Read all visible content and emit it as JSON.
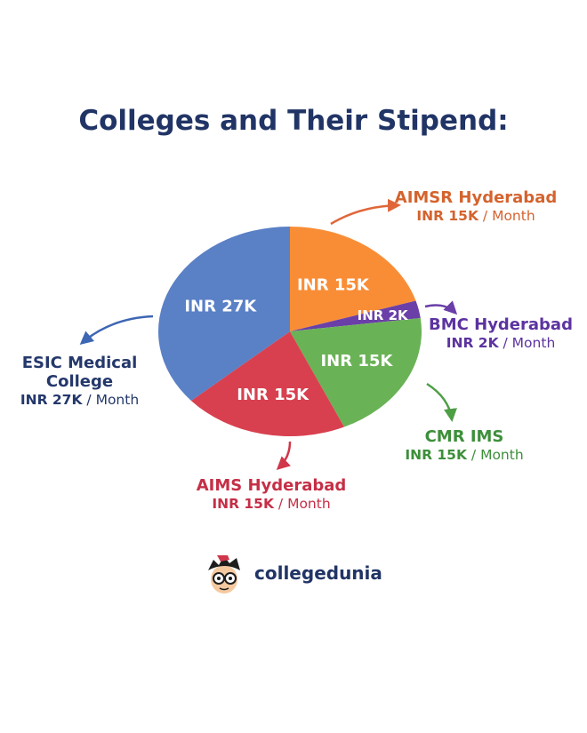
{
  "title": "Colleges and Their Stipend:",
  "brand": {
    "name": "collegedunia"
  },
  "chart_data": {
    "type": "pie",
    "title": "Colleges and Their Stipend:",
    "unit": "INR per Month",
    "slices": [
      {
        "name": "AIMSR Hyderabad",
        "value": 15000,
        "label": "INR 15K",
        "amount": "INR 15K",
        "period": "/ Month",
        "color": "#F98D36",
        "label_color": "#D4632E"
      },
      {
        "name": "BMC Hyderabad",
        "value": 2000,
        "label": "INR 2K",
        "amount": "INR 2K",
        "period": "/ Month",
        "color": "#6A3FA8",
        "label_color": "#5C33A0"
      },
      {
        "name": "CMR IMS",
        "value": 15000,
        "label": "INR 15K",
        "amount": "INR 15K",
        "period": "/ Month",
        "color": "#6AB256",
        "label_color": "#3D8F3A"
      },
      {
        "name": "AIMS Hyderabad",
        "value": 15000,
        "label": "INR 15K",
        "amount": "INR 15K",
        "period": "/ Month",
        "color": "#D8404F",
        "label_color": "#C52F46"
      },
      {
        "name": "ESIC Medical College",
        "value": 27000,
        "label": "INR 27K",
        "amount": "INR 27K",
        "period": "/ Month",
        "color": "#5A80C6",
        "label_color": "#24386B"
      }
    ]
  }
}
